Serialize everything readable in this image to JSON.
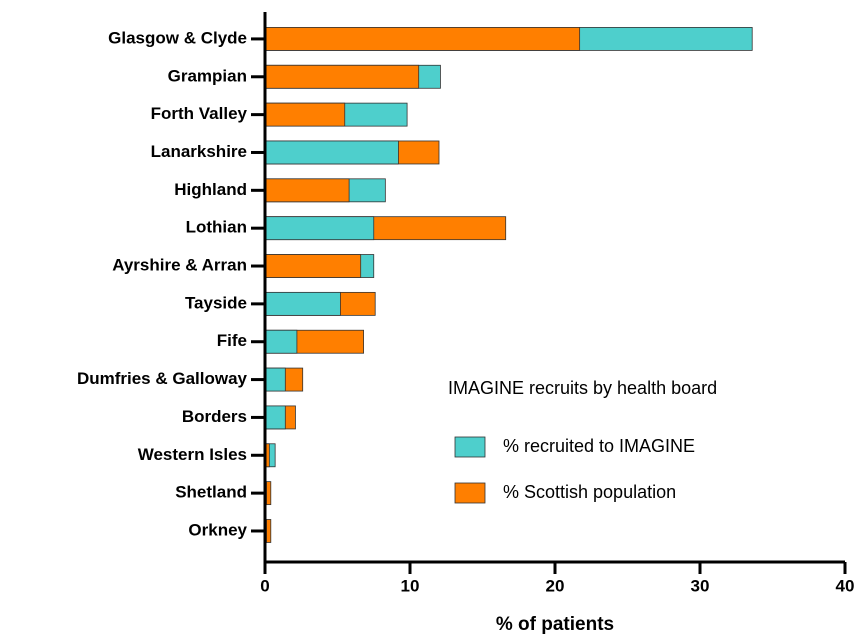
{
  "chart_data": {
    "type": "bar",
    "orientation": "horizontal",
    "xlabel": "% of patients",
    "legend_title": "IMAGINE recruits by health board",
    "categories": [
      "Glasgow & Clyde",
      "Grampian",
      "Forth Valley",
      "Lanarkshire",
      "Highland",
      "Lothian",
      "Ayrshire & Arran",
      "Tayside",
      "Fife",
      "Dumfries & Galloway",
      "Borders",
      "Western Isles",
      "Shetland",
      "Orkney"
    ],
    "series": [
      {
        "name": "% recruited to IMAGINE",
        "color": "#4ecfcc",
        "values": [
          33.6,
          12.1,
          9.8,
          9.2,
          8.3,
          7.5,
          7.5,
          5.2,
          2.2,
          1.4,
          1.4,
          0.7,
          0.1,
          0.1
        ]
      },
      {
        "name": "% Scottish population",
        "color": "#ff7f00",
        "values": [
          21.7,
          10.6,
          5.5,
          12.0,
          5.8,
          16.6,
          6.6,
          7.6,
          6.8,
          2.6,
          2.1,
          0.3,
          0.4,
          0.4
        ]
      }
    ],
    "xlim": [
      0,
      40
    ],
    "xticks": [
      0,
      10,
      20,
      30,
      40
    ]
  }
}
